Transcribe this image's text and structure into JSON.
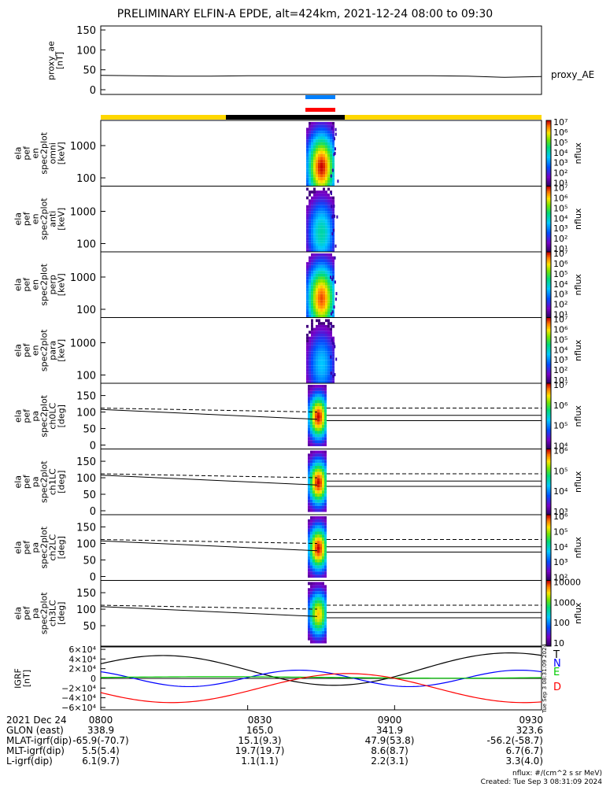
{
  "title": "PRELIMINARY ELFIN-A EPDE, alt=424km, 2021-12-24 08:00 to 09:30",
  "chart_data": {
    "type": "multi-panel",
    "xlim": [
      "08:00",
      "09:30"
    ],
    "proxy_ae": {
      "ylabel": "proxy_ae\n[nT]",
      "yticks": [
        "150",
        "100",
        "50",
        "0"
      ],
      "ylim": [
        0,
        160
      ],
      "legend": "proxy_AE",
      "values_nT": [
        36,
        35,
        34,
        34,
        35,
        35,
        35,
        35,
        35,
        35,
        34,
        31,
        33
      ]
    },
    "spec_panels": [
      {
        "ylabel": "ela\npef\nen\nspec2plot\nomni\n[keV]",
        "yticks": [
          "1000",
          "100"
        ],
        "cbar_label": "nflux",
        "cbar_ticks": [
          "10⁷",
          "10⁶",
          "10⁵",
          "10⁴",
          "10³",
          "10²",
          "10¹"
        ]
      },
      {
        "ylabel": "ela\npef\nen\nspec2plot\nanti\n[keV]",
        "yticks": [
          "1000",
          "100"
        ],
        "cbar_label": "nflux",
        "cbar_ticks": [
          "10⁷",
          "10⁶",
          "10⁵",
          "10⁴",
          "10³",
          "10²",
          "10¹"
        ]
      },
      {
        "ylabel": "ela\npef\nen\nspec2plot\nperp\n[keV]",
        "yticks": [
          "1000",
          "100"
        ],
        "cbar_label": "nflux",
        "cbar_ticks": [
          "10⁷",
          "10⁶",
          "10⁵",
          "10⁴",
          "10³",
          "10²",
          "10¹"
        ]
      },
      {
        "ylabel": "ela\npef\nen\nspec2plot\npara\n[keV]",
        "yticks": [
          "1000",
          "100"
        ],
        "cbar_label": "nflux",
        "cbar_ticks": [
          "10⁷",
          "10⁶",
          "10⁵",
          "10⁴",
          "10³",
          "10²",
          "10¹"
        ]
      }
    ],
    "pa_panels": [
      {
        "ylabel": "ela\npef\npa\nspec2plot\nch0LC\n[deg]",
        "yticks": [
          "150",
          "100",
          "50",
          "0"
        ],
        "cbar_label": "nflux",
        "cbar_ticks": [
          "10⁷",
          "10⁶",
          "10⁵",
          "10⁴"
        ]
      },
      {
        "ylabel": "ela\npef\npa\nspec2plot\nch1LC\n[deg]",
        "yticks": [
          "150",
          "100",
          "50",
          "0"
        ],
        "cbar_label": "nflux",
        "cbar_ticks": [
          "10⁶",
          "10⁵",
          "10⁴",
          "10³"
        ]
      },
      {
        "ylabel": "ela\npef\npa\nspec2plot\nch2LC\n[deg]",
        "yticks": [
          "150",
          "100",
          "50",
          "0"
        ],
        "cbar_label": "nflux",
        "cbar_ticks": [
          "10⁶",
          "10⁵",
          "10⁴",
          "10³",
          "10²"
        ]
      },
      {
        "ylabel": "ela\npef\npa\nspec2plot\nch3LC\n[deg]",
        "yticks": [
          "150",
          "100",
          "50"
        ],
        "cbar_label": "nflux",
        "cbar_ticks": [
          "10000",
          "1000",
          "100",
          "10"
        ]
      }
    ],
    "igrf": {
      "ylabel": "IGRF\n[nT]",
      "yticks": [
        "6×10⁴",
        "4×10⁴",
        "2×10⁴",
        "0",
        "−2×10⁴",
        "−4×10⁴",
        "−6×10⁴"
      ],
      "ylim": [
        -65000,
        65000
      ],
      "legend": [
        {
          "name": "T",
          "color": "#000000"
        },
        {
          "name": "N",
          "color": "#0000ff"
        },
        {
          "name": "E",
          "color": "#00cc00"
        },
        {
          "name": "D",
          "color": "#ff0000"
        }
      ]
    },
    "xaxis_table": {
      "rows": [
        {
          "label": "2021 Dec 24",
          "values": [
            "0800",
            "0830",
            "0900",
            "0930"
          ]
        },
        {
          "label": "GLON (east)",
          "values": [
            "338.9",
            "165.0",
            "341.9",
            "323.6"
          ]
        },
        {
          "label": "MLAT-igrf(dip)",
          "values": [
            "-65.9(-70.7)",
            "15.1(9.3)",
            "47.9(53.8)",
            "-56.2(-58.7)"
          ]
        },
        {
          "label": "MLT-igrf(dip)",
          "values": [
            "5.5(5.4)",
            "19.7(19.7)",
            "8.6(8.7)",
            "6.7(6.7)"
          ]
        },
        {
          "label": "L-igrf(dip)",
          "values": [
            "6.1(9.7)",
            "1.1(1.1)",
            "2.2(3.1)",
            "3.3(4.0)"
          ]
        }
      ]
    }
  },
  "colors": {
    "yellow_bar": "#ffd700",
    "black_bar": "#000000",
    "blue_marker": "#0080ff",
    "red_marker": "#ff0000"
  },
  "footer": {
    "line1": "nflux: #/(cm^2 s sr MeV)",
    "line2": "Created: Tue Sep  3 08:31:09 2024",
    "sidestamp": "Tue Sep  3 08:31:09 2024"
  }
}
